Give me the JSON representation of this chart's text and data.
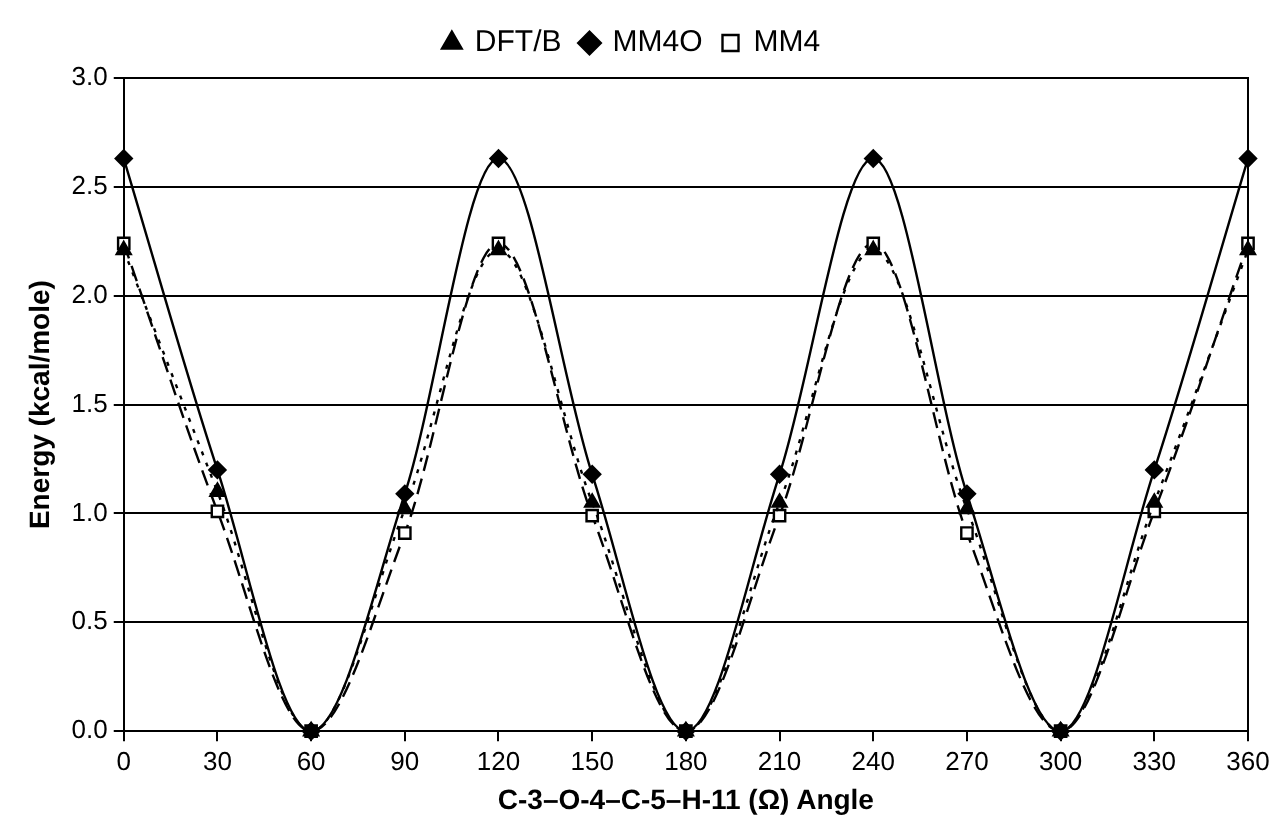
{
  "chart_data": {
    "type": "line",
    "xlabel": "C-3–O-4–C-5–H-11 (Ω) Angle",
    "ylabel": "Energy (kcal/mole)",
    "x": [
      0,
      30,
      60,
      90,
      120,
      150,
      180,
      210,
      240,
      270,
      300,
      330,
      360
    ],
    "series": [
      {
        "name": "DFT/B",
        "color": "#000000",
        "marker": "triangle",
        "line_style": "dotted",
        "values": [
          2.21,
          1.1,
          0,
          1.02,
          2.21,
          1.05,
          0,
          1.05,
          2.21,
          1.02,
          0,
          1.05,
          2.21
        ]
      },
      {
        "name": "MM4O",
        "color": "#000000",
        "marker": "diamond",
        "line_style": "solid",
        "values": [
          2.63,
          1.2,
          0,
          1.09,
          2.63,
          1.18,
          0,
          1.18,
          2.63,
          1.09,
          0,
          1.2,
          2.63
        ]
      },
      {
        "name": "MM4",
        "color": "#000000",
        "marker": "square",
        "line_style": "dashed",
        "values": [
          2.24,
          1.01,
          0,
          0.91,
          2.24,
          0.99,
          0,
          0.99,
          2.24,
          0.91,
          0,
          1.01,
          2.24
        ]
      }
    ],
    "xlim": [
      0,
      360
    ],
    "xticks": [
      0,
      30,
      60,
      90,
      120,
      150,
      180,
      210,
      240,
      270,
      300,
      330,
      360
    ],
    "ylim": [
      0,
      3
    ],
    "yticks": [
      {
        "value": 0,
        "label": "0.0"
      },
      {
        "value": 0.5,
        "label": "0.5"
      },
      {
        "value": 1,
        "label": "1.0"
      },
      {
        "value": 1.5,
        "label": "1.5"
      },
      {
        "value": 2,
        "label": "2.0"
      },
      {
        "value": 2.5,
        "label": "2.5"
      },
      {
        "value": 3,
        "label": "3.0"
      }
    ],
    "grid": "y",
    "legend": "top"
  }
}
